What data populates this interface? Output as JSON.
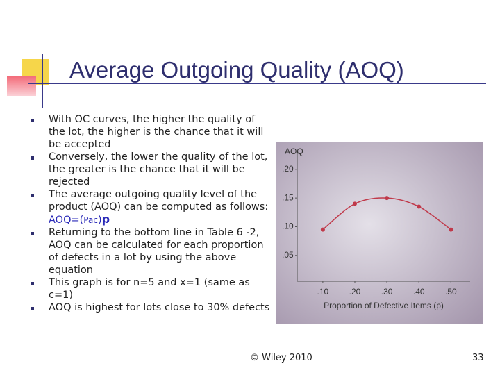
{
  "title": "Average Outgoing Quality (AOQ)",
  "bullets": [
    "With OC curves, the higher the quality of the lot, the higher is the chance that it will be accepted",
    "Conversely, the lower the quality of the lot, the greater is the chance that it will be rejected",
    {
      "text": "The average outgoing quality level of the product (AOQ) can be computed as follows: ",
      "formula": [
        "AOQ=(",
        "Pac",
        ")",
        "p"
      ]
    },
    "Returning to the bottom line in Table 6 -2, AOQ can be calculated for each proportion of defects in a lot by using the above equation",
    "This graph is for n=5 and x=1 (same as c=1)",
    "AOQ is highest for lots close to 30% defects"
  ],
  "chart_data": {
    "type": "line",
    "ylabel": "AOQ",
    "xlabel": "Proportion of Defective Items (p)",
    "x": [
      0.1,
      0.2,
      0.3,
      0.4,
      0.5
    ],
    "series": [
      {
        "name": "AOQ",
        "color": "#c0394a",
        "values": [
          0.095,
          0.14,
          0.15,
          0.135,
          0.095
        ]
      }
    ],
    "xlim": [
      0.02,
      0.56
    ],
    "ylim": [
      0.005,
      0.23
    ],
    "xticks": [
      {
        "value": 0.1,
        "label": ".10"
      },
      {
        "value": 0.2,
        "label": ".20"
      },
      {
        "value": 0.3,
        "label": ".30"
      },
      {
        "value": 0.4,
        "label": ".40"
      },
      {
        "value": 0.5,
        "label": ".50"
      }
    ],
    "yticks": [
      {
        "value": 0.05,
        "label": ".05"
      },
      {
        "value": 0.1,
        "label": ".10"
      },
      {
        "value": 0.15,
        "label": ".15"
      },
      {
        "value": 0.2,
        "label": ".20"
      }
    ]
  },
  "footer": "© Wiley 2010",
  "page_number": "33"
}
